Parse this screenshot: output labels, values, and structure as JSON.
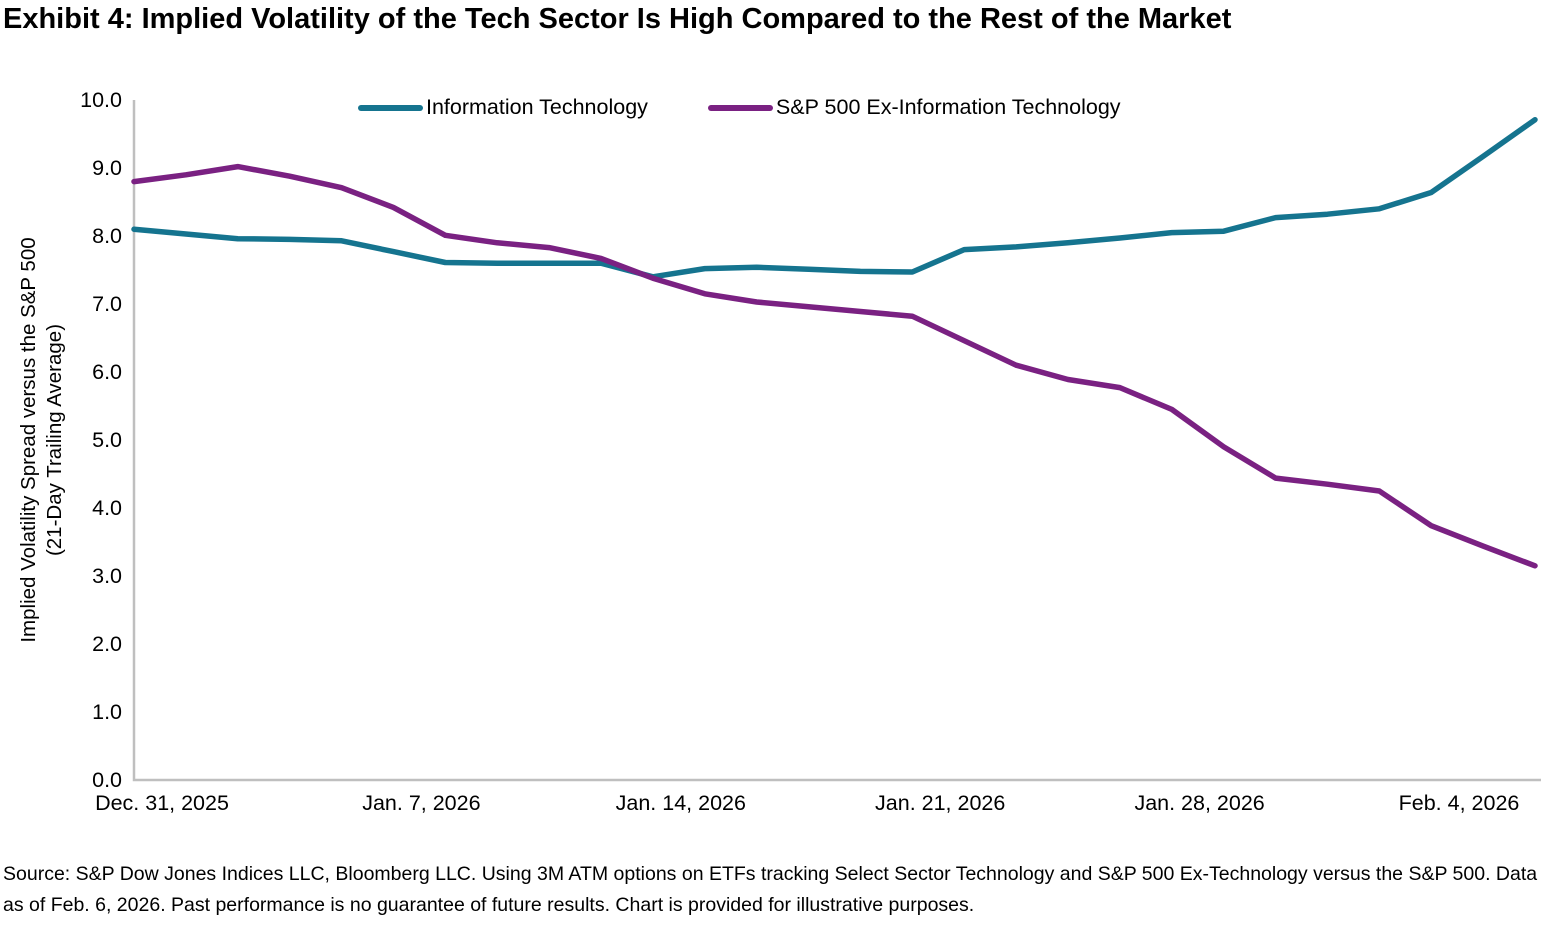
{
  "page": {
    "title": "Exhibit 4: Implied Volatility of the Tech Sector Is High Compared to the Rest of the Market",
    "source_note": "Source: S&P Dow Jones Indices LLC, Bloomberg LLC. Using 3M ATM options on ETFs tracking Select Sector Technology and S&P 500 Ex-Technology versus the S&P 500. Data as of Feb. 6, 2026. Past performance is no guarantee of future results. Chart is provided for illustrative purposes."
  },
  "chart_data": {
    "type": "line",
    "title": "Exhibit 4: Implied Volatility of the Tech Sector Is High Compared to the Rest of the Market",
    "ylabel": "Implied Volatility Spread versus the S&P 500 (21-Day Trailing Average)",
    "ylabel_line1": "Implied Volatility Spread versus the S&P 500",
    "ylabel_line2": "(21-Day Trailing Average)",
    "ylim": [
      0,
      10
    ],
    "ytick_labels": [
      "0.0",
      "1.0",
      "2.0",
      "3.0",
      "4.0",
      "5.0",
      "6.0",
      "7.0",
      "8.0",
      "9.0",
      "10.0"
    ],
    "xtick_labels": [
      "Dec. 31, 2025",
      "Jan. 7, 2026",
      "Jan. 14, 2026",
      "Jan. 21, 2026",
      "Jan. 28, 2026",
      "Feb. 4, 2026"
    ],
    "x_range_description": "Weekdays from Dec. 31, 2025 through Feb. 6, 2026; 28 evenly spaced points",
    "grid": false,
    "legend_position": "top-center",
    "axis_color": "#BFBFBF",
    "series": [
      {
        "name": "Information Technology",
        "color": "#15748F",
        "values": [
          8.1,
          8.03,
          7.96,
          7.95,
          7.93,
          7.77,
          7.61,
          7.6,
          7.6,
          7.6,
          7.4,
          7.52,
          7.54,
          7.51,
          7.48,
          7.47,
          7.8,
          7.84,
          7.9,
          7.97,
          8.05,
          8.07,
          8.27,
          8.32,
          8.4,
          8.64,
          9.17,
          9.71
        ]
      },
      {
        "name": "S&P 500 Ex-Information Technology",
        "color": "#7A2182",
        "values": [
          8.8,
          8.9,
          9.02,
          8.88,
          8.71,
          8.42,
          8.01,
          7.9,
          7.83,
          7.67,
          7.38,
          7.15,
          7.03,
          6.96,
          6.89,
          6.82,
          6.46,
          6.1,
          5.89,
          5.77,
          5.45,
          4.9,
          4.44,
          4.35,
          4.25,
          3.74,
          3.44,
          3.15
        ]
      }
    ]
  }
}
